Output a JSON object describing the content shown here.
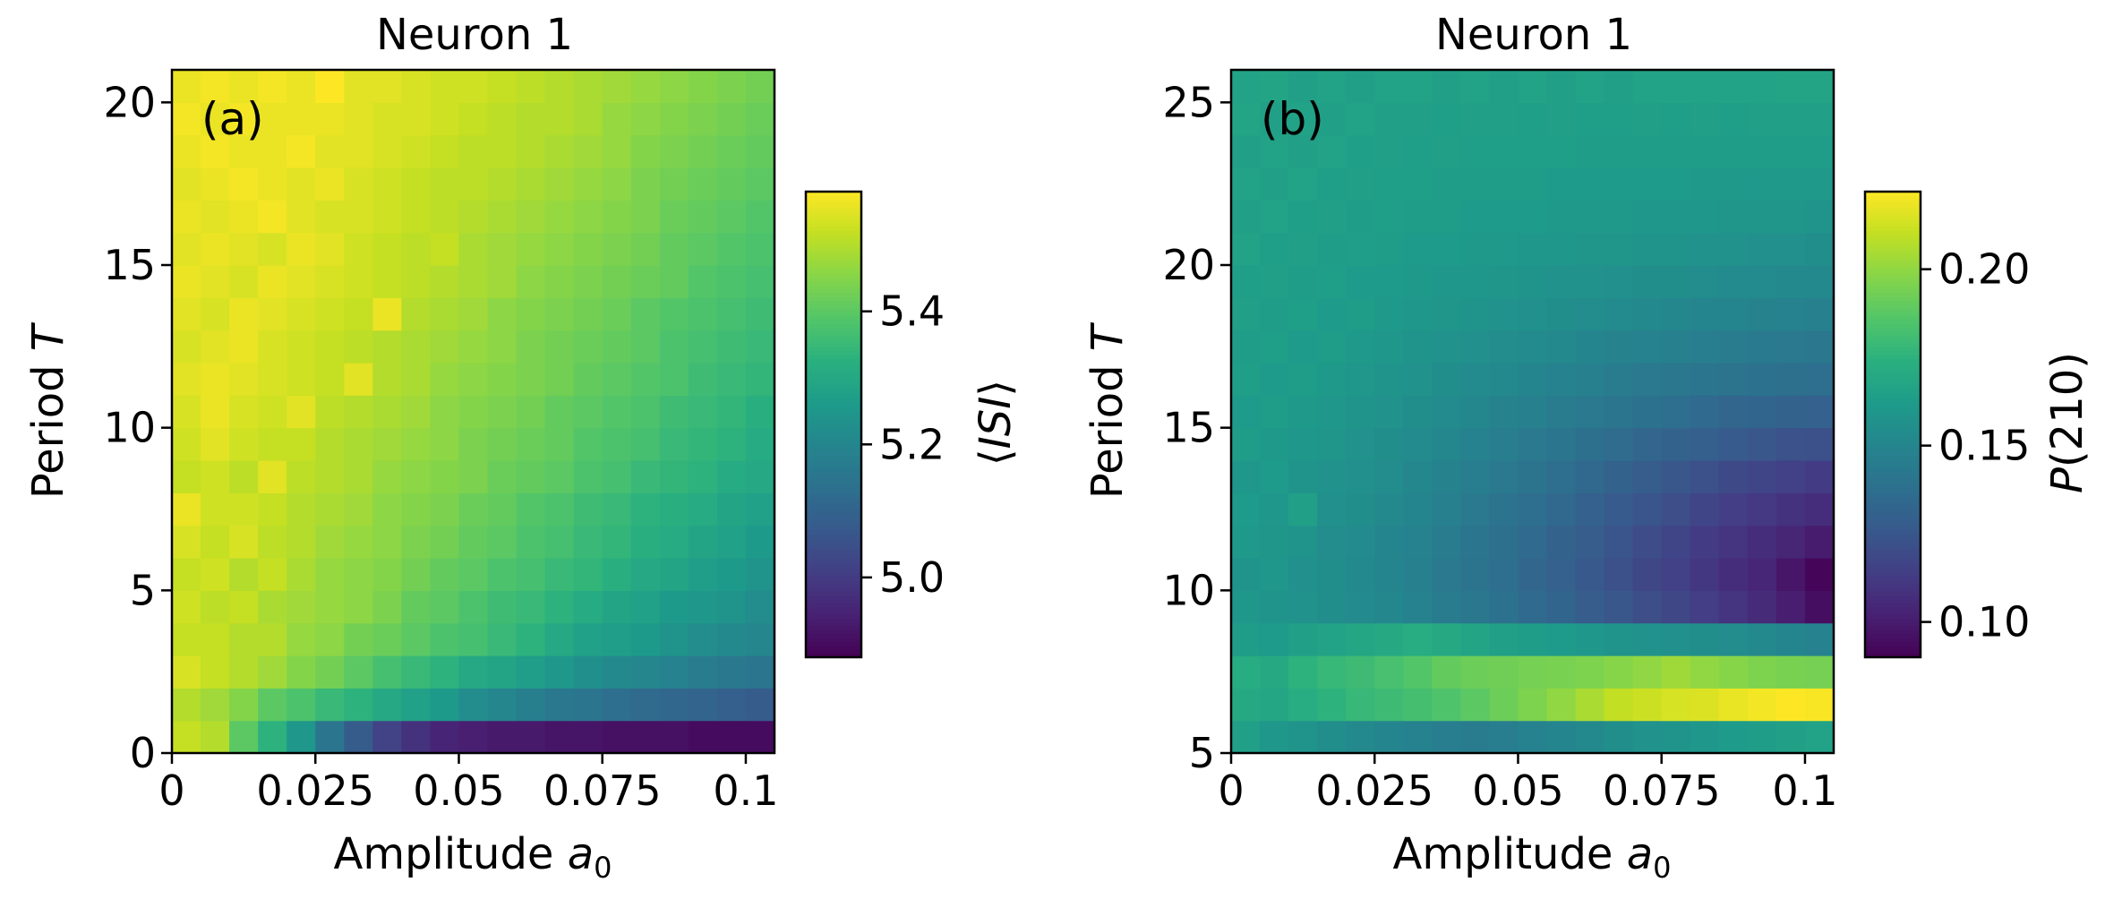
{
  "chart_data": [
    {
      "type": "heatmap",
      "title": "Neuron 1",
      "panel_label": "(a)",
      "xlabel_text": "Amplitude ",
      "xlabel_symbol": "a",
      "xlabel_sub": "0",
      "ylabel_text": "Period ",
      "ylabel_symbol": "T",
      "xlim": [
        0,
        0.105
      ],
      "ylim": [
        0,
        21
      ],
      "x_ticks": [
        0,
        0.025,
        0.05,
        0.075,
        0.1
      ],
      "x_tick_labels": [
        "0",
        "0.025",
        "0.05",
        "0.075",
        "0.1"
      ],
      "y_ticks": [
        0,
        5,
        10,
        15,
        20
      ],
      "y_tick_labels": [
        "0",
        "5",
        "10",
        "15",
        "20"
      ],
      "colorbar": {
        "label_left": "⟨",
        "label_symbol": "ISI",
        "label_right": "⟩",
        "range": [
          4.88,
          5.58
        ],
        "ticks": [
          5.0,
          5.2,
          5.4
        ],
        "tick_labels": [
          "5.0",
          "5.2",
          "5.4"
        ],
        "colormap": "viridis"
      },
      "grid_shape": [
        21,
        21
      ],
      "cell_values_description": "rows bottom->top (T), columns left->right (a0)",
      "z_rows": [
        [
          5.52,
          5.5,
          5.4,
          5.33,
          5.25,
          5.15,
          5.08,
          5.02,
          4.98,
          4.95,
          4.94,
          4.93,
          4.93,
          4.92,
          4.92,
          4.91,
          4.91,
          4.91,
          4.9,
          4.9,
          4.9
        ],
        [
          5.5,
          5.48,
          5.45,
          5.4,
          5.38,
          5.35,
          5.33,
          5.3,
          5.28,
          5.26,
          5.22,
          5.2,
          5.18,
          5.16,
          5.15,
          5.13,
          5.12,
          5.11,
          5.1,
          5.09,
          5.08
        ],
        [
          5.54,
          5.52,
          5.5,
          5.48,
          5.45,
          5.43,
          5.4,
          5.37,
          5.35,
          5.33,
          5.3,
          5.29,
          5.27,
          5.25,
          5.23,
          5.21,
          5.2,
          5.19,
          5.17,
          5.16,
          5.15
        ],
        [
          5.52,
          5.52,
          5.5,
          5.5,
          5.47,
          5.46,
          5.43,
          5.42,
          5.4,
          5.38,
          5.37,
          5.35,
          5.33,
          5.3,
          5.28,
          5.27,
          5.26,
          5.24,
          5.22,
          5.21,
          5.2
        ],
        [
          5.53,
          5.51,
          5.52,
          5.49,
          5.48,
          5.47,
          5.46,
          5.44,
          5.41,
          5.4,
          5.38,
          5.36,
          5.35,
          5.33,
          5.31,
          5.29,
          5.28,
          5.26,
          5.25,
          5.24,
          5.22
        ],
        [
          5.52,
          5.53,
          5.5,
          5.52,
          5.49,
          5.47,
          5.46,
          5.45,
          5.43,
          5.41,
          5.4,
          5.38,
          5.37,
          5.35,
          5.34,
          5.32,
          5.3,
          5.29,
          5.27,
          5.26,
          5.24
        ],
        [
          5.54,
          5.52,
          5.54,
          5.51,
          5.5,
          5.48,
          5.47,
          5.46,
          5.44,
          5.43,
          5.41,
          5.4,
          5.38,
          5.37,
          5.35,
          5.34,
          5.32,
          5.31,
          5.29,
          5.28,
          5.26
        ],
        [
          5.56,
          5.53,
          5.53,
          5.52,
          5.5,
          5.49,
          5.48,
          5.46,
          5.45,
          5.44,
          5.42,
          5.41,
          5.39,
          5.38,
          5.36,
          5.35,
          5.33,
          5.32,
          5.31,
          5.29,
          5.28
        ],
        [
          5.52,
          5.53,
          5.51,
          5.55,
          5.51,
          5.5,
          5.49,
          5.47,
          5.46,
          5.45,
          5.44,
          5.42,
          5.41,
          5.4,
          5.38,
          5.37,
          5.35,
          5.34,
          5.33,
          5.31,
          5.3
        ],
        [
          5.53,
          5.55,
          5.53,
          5.52,
          5.52,
          5.5,
          5.49,
          5.48,
          5.47,
          5.46,
          5.44,
          5.43,
          5.42,
          5.41,
          5.39,
          5.38,
          5.37,
          5.35,
          5.34,
          5.33,
          5.31
        ],
        [
          5.54,
          5.56,
          5.54,
          5.53,
          5.55,
          5.51,
          5.5,
          5.49,
          5.48,
          5.46,
          5.45,
          5.44,
          5.43,
          5.41,
          5.4,
          5.39,
          5.38,
          5.36,
          5.35,
          5.34,
          5.32
        ],
        [
          5.55,
          5.56,
          5.55,
          5.54,
          5.53,
          5.52,
          5.55,
          5.5,
          5.49,
          5.47,
          5.46,
          5.45,
          5.44,
          5.43,
          5.41,
          5.4,
          5.39,
          5.38,
          5.36,
          5.35,
          5.34
        ],
        [
          5.54,
          5.55,
          5.56,
          5.54,
          5.53,
          5.52,
          5.51,
          5.5,
          5.49,
          5.48,
          5.47,
          5.46,
          5.44,
          5.43,
          5.42,
          5.41,
          5.4,
          5.38,
          5.37,
          5.36,
          5.35
        ],
        [
          5.55,
          5.54,
          5.56,
          5.55,
          5.54,
          5.53,
          5.52,
          5.56,
          5.5,
          5.49,
          5.48,
          5.46,
          5.45,
          5.44,
          5.43,
          5.42,
          5.4,
          5.39,
          5.38,
          5.37,
          5.36
        ],
        [
          5.56,
          5.55,
          5.54,
          5.56,
          5.55,
          5.54,
          5.53,
          5.52,
          5.51,
          5.5,
          5.49,
          5.48,
          5.46,
          5.45,
          5.44,
          5.43,
          5.42,
          5.41,
          5.39,
          5.38,
          5.37
        ],
        [
          5.55,
          5.56,
          5.55,
          5.54,
          5.56,
          5.55,
          5.53,
          5.52,
          5.51,
          5.52,
          5.49,
          5.48,
          5.47,
          5.46,
          5.45,
          5.44,
          5.43,
          5.41,
          5.4,
          5.39,
          5.38
        ],
        [
          5.56,
          5.55,
          5.56,
          5.57,
          5.55,
          5.54,
          5.54,
          5.53,
          5.52,
          5.51,
          5.5,
          5.49,
          5.48,
          5.47,
          5.46,
          5.45,
          5.44,
          5.42,
          5.41,
          5.4,
          5.39
        ],
        [
          5.55,
          5.56,
          5.57,
          5.56,
          5.55,
          5.56,
          5.54,
          5.53,
          5.52,
          5.51,
          5.51,
          5.5,
          5.49,
          5.48,
          5.47,
          5.46,
          5.44,
          5.43,
          5.42,
          5.41,
          5.4
        ],
        [
          5.56,
          5.57,
          5.56,
          5.56,
          5.57,
          5.55,
          5.55,
          5.54,
          5.53,
          5.52,
          5.51,
          5.51,
          5.5,
          5.49,
          5.48,
          5.47,
          5.45,
          5.44,
          5.43,
          5.42,
          5.41
        ],
        [
          5.57,
          5.56,
          5.57,
          5.56,
          5.56,
          5.56,
          5.55,
          5.54,
          5.54,
          5.53,
          5.52,
          5.51,
          5.5,
          5.5,
          5.49,
          5.47,
          5.46,
          5.45,
          5.44,
          5.43,
          5.42
        ],
        [
          5.56,
          5.57,
          5.56,
          5.57,
          5.56,
          5.58,
          5.55,
          5.55,
          5.54,
          5.53,
          5.53,
          5.52,
          5.51,
          5.5,
          5.49,
          5.48,
          5.47,
          5.46,
          5.45,
          5.44,
          5.43
        ]
      ]
    },
    {
      "type": "heatmap",
      "title": "Neuron 1",
      "panel_label": "(b)",
      "xlabel_text": "Amplitude ",
      "xlabel_symbol": "a",
      "xlabel_sub": "0",
      "ylabel_text": "Period ",
      "ylabel_symbol": "T",
      "xlim": [
        0,
        0.105
      ],
      "ylim": [
        5,
        26
      ],
      "x_ticks": [
        0,
        0.025,
        0.05,
        0.075,
        0.1
      ],
      "x_tick_labels": [
        "0",
        "0.025",
        "0.05",
        "0.075",
        "0.1"
      ],
      "y_ticks": [
        5,
        10,
        15,
        20,
        25
      ],
      "y_tick_labels": [
        "5",
        "10",
        "15",
        "20",
        "25"
      ],
      "colorbar": {
        "label_symbol": "P",
        "label_rest": "(210)",
        "range": [
          0.09,
          0.222
        ],
        "ticks": [
          0.1,
          0.15,
          0.2
        ],
        "tick_labels": [
          "0.10",
          "0.15",
          "0.20"
        ],
        "colormap": "viridis"
      },
      "grid_shape": [
        21,
        21
      ],
      "cell_values_description": "rows bottom->top (T), columns left->right (a0)",
      "z_rows": [
        [
          0.165,
          0.16,
          0.158,
          0.155,
          0.152,
          0.15,
          0.148,
          0.146,
          0.145,
          0.146,
          0.148,
          0.15,
          0.152,
          0.155,
          0.157,
          0.158,
          0.16,
          0.162,
          0.163,
          0.165,
          0.166
        ],
        [
          0.17,
          0.168,
          0.172,
          0.175,
          0.178,
          0.18,
          0.182,
          0.185,
          0.188,
          0.192,
          0.196,
          0.2,
          0.205,
          0.21,
          0.212,
          0.214,
          0.215,
          0.218,
          0.22,
          0.222,
          0.221
        ],
        [
          0.172,
          0.17,
          0.175,
          0.178,
          0.18,
          0.183,
          0.186,
          0.19,
          0.192,
          0.193,
          0.194,
          0.195,
          0.196,
          0.198,
          0.2,
          0.203,
          0.2,
          0.198,
          0.196,
          0.195,
          0.194
        ],
        [
          0.163,
          0.162,
          0.165,
          0.166,
          0.168,
          0.17,
          0.172,
          0.17,
          0.167,
          0.165,
          0.163,
          0.162,
          0.16,
          0.158,
          0.157,
          0.156,
          0.155,
          0.154,
          0.152,
          0.15,
          0.148
        ],
        [
          0.16,
          0.158,
          0.157,
          0.155,
          0.153,
          0.151,
          0.148,
          0.145,
          0.142,
          0.139,
          0.135,
          0.132,
          0.128,
          0.125,
          0.121,
          0.118,
          0.114,
          0.11,
          0.106,
          0.101,
          0.095
        ],
        [
          0.158,
          0.16,
          0.156,
          0.155,
          0.152,
          0.15,
          0.147,
          0.143,
          0.14,
          0.137,
          0.133,
          0.13,
          0.126,
          0.122,
          0.118,
          0.115,
          0.111,
          0.107,
          0.104,
          0.098,
          0.092
        ],
        [
          0.161,
          0.159,
          0.158,
          0.154,
          0.153,
          0.15,
          0.148,
          0.145,
          0.141,
          0.138,
          0.135,
          0.131,
          0.128,
          0.124,
          0.12,
          0.117,
          0.113,
          0.11,
          0.107,
          0.104,
          0.1
        ],
        [
          0.162,
          0.16,
          0.165,
          0.156,
          0.155,
          0.152,
          0.15,
          0.147,
          0.143,
          0.14,
          0.137,
          0.134,
          0.13,
          0.127,
          0.124,
          0.121,
          0.117,
          0.114,
          0.112,
          0.109,
          0.107
        ],
        [
          0.16,
          0.162,
          0.158,
          0.157,
          0.156,
          0.154,
          0.151,
          0.149,
          0.146,
          0.143,
          0.14,
          0.137,
          0.134,
          0.131,
          0.128,
          0.125,
          0.122,
          0.119,
          0.117,
          0.115,
          0.113
        ],
        [
          0.163,
          0.161,
          0.16,
          0.159,
          0.157,
          0.155,
          0.153,
          0.151,
          0.148,
          0.146,
          0.143,
          0.141,
          0.138,
          0.136,
          0.133,
          0.131,
          0.129,
          0.127,
          0.125,
          0.123,
          0.122
        ],
        [
          0.162,
          0.163,
          0.161,
          0.16,
          0.158,
          0.157,
          0.155,
          0.153,
          0.151,
          0.149,
          0.147,
          0.145,
          0.143,
          0.141,
          0.139,
          0.137,
          0.135,
          0.133,
          0.132,
          0.131,
          0.13
        ],
        [
          0.164,
          0.162,
          0.163,
          0.161,
          0.16,
          0.158,
          0.157,
          0.155,
          0.153,
          0.152,
          0.15,
          0.148,
          0.147,
          0.145,
          0.143,
          0.142,
          0.141,
          0.14,
          0.139,
          0.138,
          0.137
        ],
        [
          0.163,
          0.164,
          0.162,
          0.163,
          0.161,
          0.16,
          0.158,
          0.157,
          0.156,
          0.154,
          0.153,
          0.152,
          0.15,
          0.149,
          0.148,
          0.147,
          0.146,
          0.145,
          0.144,
          0.143,
          0.142
        ],
        [
          0.165,
          0.163,
          0.164,
          0.162,
          0.163,
          0.161,
          0.16,
          0.159,
          0.158,
          0.157,
          0.156,
          0.155,
          0.154,
          0.153,
          0.152,
          0.151,
          0.15,
          0.15,
          0.149,
          0.148,
          0.147
        ],
        [
          0.164,
          0.165,
          0.163,
          0.164,
          0.162,
          0.162,
          0.161,
          0.16,
          0.16,
          0.159,
          0.158,
          0.157,
          0.157,
          0.156,
          0.155,
          0.155,
          0.154,
          0.153,
          0.153,
          0.152,
          0.152
        ],
        [
          0.166,
          0.164,
          0.165,
          0.163,
          0.164,
          0.163,
          0.162,
          0.162,
          0.161,
          0.161,
          0.16,
          0.16,
          0.159,
          0.159,
          0.158,
          0.158,
          0.157,
          0.157,
          0.156,
          0.156,
          0.155
        ],
        [
          0.165,
          0.166,
          0.164,
          0.165,
          0.163,
          0.164,
          0.163,
          0.163,
          0.162,
          0.162,
          0.162,
          0.161,
          0.161,
          0.161,
          0.16,
          0.16,
          0.16,
          0.159,
          0.159,
          0.159,
          0.158
        ],
        [
          0.166,
          0.165,
          0.166,
          0.164,
          0.165,
          0.164,
          0.164,
          0.163,
          0.163,
          0.163,
          0.163,
          0.162,
          0.162,
          0.162,
          0.162,
          0.162,
          0.161,
          0.161,
          0.161,
          0.161,
          0.161
        ],
        [
          0.165,
          0.166,
          0.165,
          0.166,
          0.164,
          0.165,
          0.164,
          0.165,
          0.164,
          0.164,
          0.164,
          0.164,
          0.163,
          0.163,
          0.163,
          0.163,
          0.163,
          0.163,
          0.163,
          0.163,
          0.163
        ],
        [
          0.167,
          0.165,
          0.166,
          0.165,
          0.166,
          0.165,
          0.165,
          0.164,
          0.165,
          0.165,
          0.164,
          0.165,
          0.164,
          0.164,
          0.165,
          0.164,
          0.165,
          0.164,
          0.165,
          0.165,
          0.165
        ],
        [
          0.166,
          0.167,
          0.165,
          0.166,
          0.165,
          0.166,
          0.166,
          0.165,
          0.166,
          0.165,
          0.166,
          0.165,
          0.166,
          0.165,
          0.166,
          0.166,
          0.166,
          0.166,
          0.166,
          0.167,
          0.167
        ]
      ]
    }
  ]
}
